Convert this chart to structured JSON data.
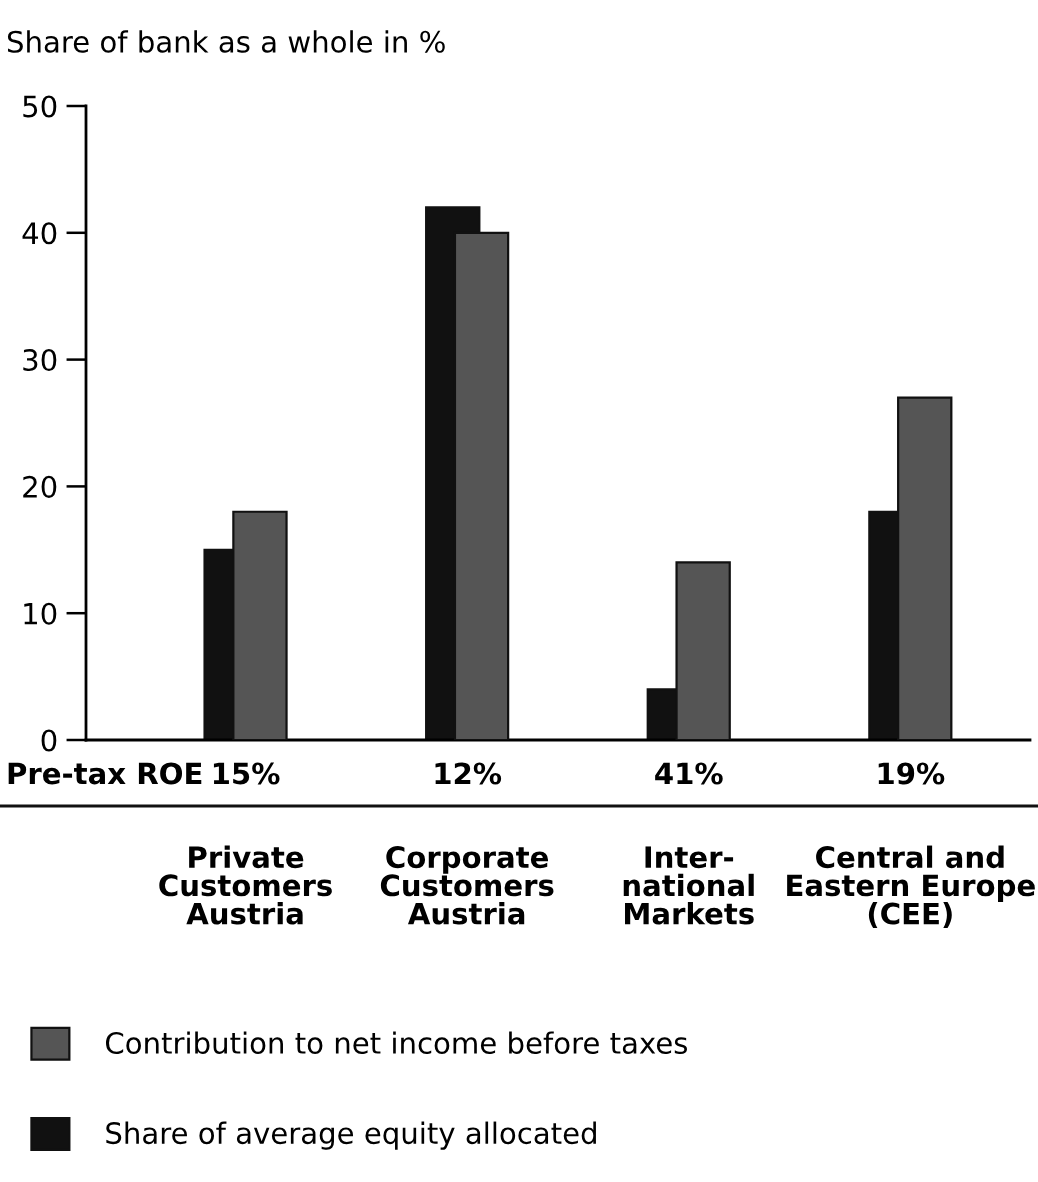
{
  "chart_data": {
    "type": "bar",
    "ylabel": "Share of bank as a whole in %",
    "categories": [
      "Private\nCustomers\nAustria",
      "Corporate\nCustomers\nAustria",
      "Inter-\nnational\nMarkets",
      "Central and\nEastern Europe\n(CEE)"
    ],
    "series": [
      {
        "name": "Share of average equity allocated",
        "color": "#111111",
        "values": [
          15,
          42,
          4,
          18
        ]
      },
      {
        "name": "Contribution to net income before taxes",
        "color": "#555555",
        "values": [
          18,
          40,
          14,
          27
        ]
      }
    ],
    "ylim": [
      0,
      50
    ],
    "yticks": [
      0,
      10,
      20,
      30,
      40,
      50
    ],
    "annotations": [
      "Pre-tax ROE",
      "15%",
      "12%",
      "41%",
      "19%"
    ],
    "grid": false,
    "legend": "bottom left"
  }
}
